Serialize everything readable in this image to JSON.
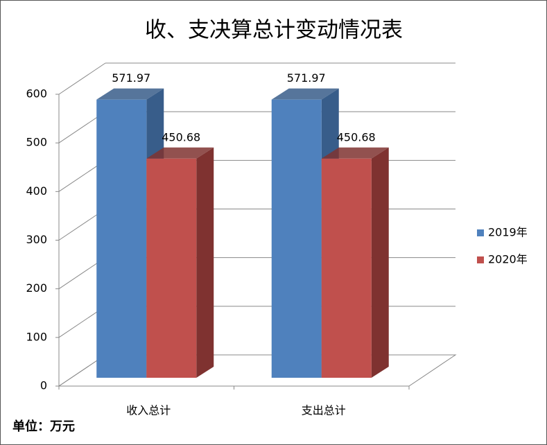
{
  "chart_data": {
    "type": "bar3d",
    "title": "收、支决算总计变动情况表",
    "note": "单位：万元",
    "categories": [
      "收入总计",
      "支出总计"
    ],
    "series": [
      {
        "name": "2019年",
        "color": "#4f81bd",
        "side_color": "#385d8a",
        "values": [
          571.97,
          571.97
        ]
      },
      {
        "name": "2020年",
        "color": "#c0504d",
        "side_color": "#7f3230",
        "values": [
          450.68,
          450.68
        ]
      }
    ],
    "ylim": [
      0,
      600
    ],
    "yticks": [
      0,
      100,
      200,
      300,
      400,
      500,
      600
    ],
    "grid": true,
    "legend": "right"
  }
}
